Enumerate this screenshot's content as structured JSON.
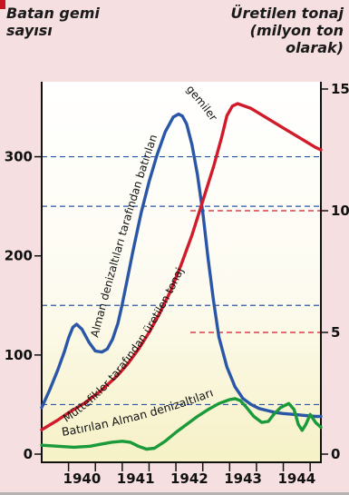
{
  "chart_data": {
    "type": "line",
    "y_left_label": "Batan gemi\nsayısı",
    "y_right_label": "Üretilen tonaj\n(milyon ton\nolarak)",
    "x_ticks": [
      "1940",
      "1941",
      "1942",
      "1943",
      "1944"
    ],
    "x_range": [
      1939.5,
      1944.7
    ],
    "y_left_ticks": [
      0,
      100,
      200,
      300
    ],
    "y_left_range": [
      0,
      350
    ],
    "y_right_ticks": [
      0,
      5,
      10,
      15
    ],
    "y_right_range": [
      0,
      15
    ],
    "grid": "dashed lines at 50, 150, 250 and 300 (left) and 5, 10 (right)",
    "series": [
      {
        "name": "Alman denizaltıları tarafından batırılan gemiler",
        "axis": "left",
        "color": "#2a56a8",
        "x": [
          1939.5,
          1939.65,
          1939.8,
          1939.92,
          1940.0,
          1940.08,
          1940.15,
          1940.25,
          1940.38,
          1940.5,
          1940.62,
          1940.72,
          1940.82,
          1940.92,
          1941.0,
          1941.1,
          1941.2,
          1941.35,
          1941.5,
          1941.65,
          1941.8,
          1941.95,
          1942.05,
          1942.12,
          1942.2,
          1942.3,
          1942.4,
          1942.5,
          1942.6,
          1942.7,
          1942.8,
          1942.95,
          1943.1,
          1943.25,
          1943.4,
          1943.55,
          1943.7,
          1943.85,
          1944.0,
          1944.2,
          1944.4,
          1944.6,
          1944.7
        ],
        "y": [
          47,
          65,
          85,
          103,
          117,
          128,
          131,
          126,
          113,
          104,
          103,
          106,
          116,
          132,
          151,
          178,
          205,
          243,
          275,
          302,
          325,
          340,
          343,
          341,
          333,
          312,
          282,
          244,
          197,
          155,
          118,
          88,
          68,
          56,
          50,
          46,
          44,
          42,
          41,
          40,
          39,
          38,
          38
        ]
      },
      {
        "name": "Müttefikler tarafından üretilen tonaj",
        "axis": "right",
        "color": "#d11a2a",
        "x": [
          1939.5,
          1939.8,
          1940.0,
          1940.3,
          1940.6,
          1940.9,
          1941.1,
          1941.3,
          1941.5,
          1941.7,
          1941.9,
          1942.1,
          1942.3,
          1942.5,
          1942.7,
          1942.85,
          1942.95,
          1943.05,
          1943.15,
          1943.4,
          1943.7,
          1944.0,
          1944.3,
          1944.6,
          1944.7
        ],
        "y": [
          1.0,
          1.4,
          1.7,
          2.1,
          2.6,
          3.2,
          3.7,
          4.3,
          5.0,
          5.8,
          6.7,
          7.8,
          9.0,
          10.4,
          11.8,
          13.0,
          13.9,
          14.3,
          14.4,
          14.2,
          13.8,
          13.4,
          13.0,
          12.6,
          12.5
        ]
      },
      {
        "name": "Batırılan Alman denizaltıları",
        "axis": "left",
        "color": "#1a9a3a",
        "x": [
          1939.5,
          1939.8,
          1940.1,
          1940.4,
          1940.6,
          1940.8,
          1941.0,
          1941.15,
          1941.3,
          1941.45,
          1941.6,
          1941.8,
          1942.0,
          1942.2,
          1942.4,
          1942.6,
          1942.8,
          1943.0,
          1943.1,
          1943.2,
          1943.3,
          1943.45,
          1943.6,
          1943.72,
          1943.82,
          1943.95,
          1944.1,
          1944.2,
          1944.28,
          1944.35,
          1944.42,
          1944.5,
          1944.6,
          1944.7
        ],
        "y": [
          9,
          8,
          7,
          8,
          10,
          12,
          13,
          12,
          8,
          5,
          6,
          13,
          22,
          30,
          38,
          45,
          51,
          55,
          56,
          54,
          48,
          38,
          32,
          33,
          40,
          47,
          51,
          45,
          30,
          24,
          30,
          40,
          32,
          27
        ]
      }
    ],
    "series_labels": [
      {
        "text": "Alman denizaltıları tarafından batırılan",
        "series": 0
      },
      {
        "text": "gemiler",
        "series": 0
      },
      {
        "text": "Müttefikler tarafından üretilen tonaj",
        "series": 1
      },
      {
        "text": "Batırılan Alman denizaltıları",
        "series": 2
      }
    ]
  }
}
